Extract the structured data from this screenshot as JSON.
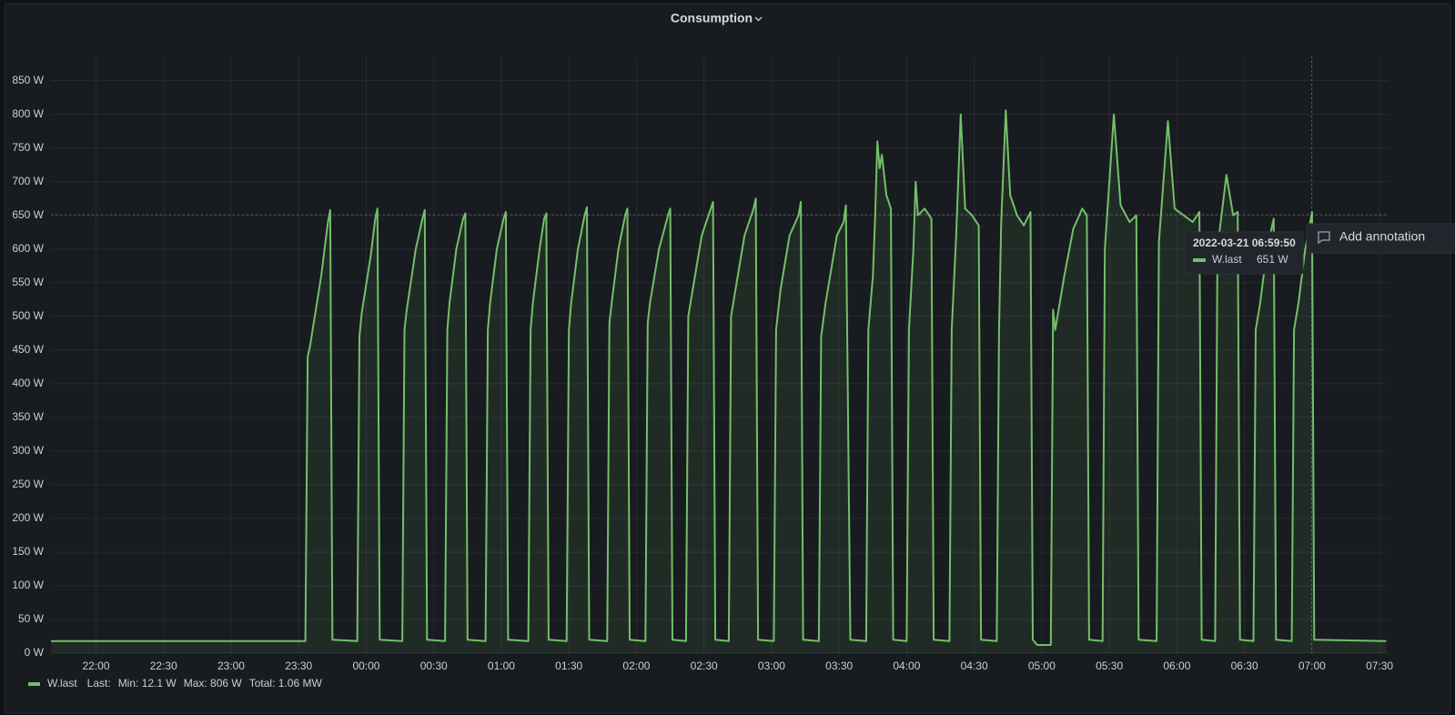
{
  "chart_data": {
    "type": "line",
    "title": "Consumption",
    "xlim": [
      "21:40",
      "07:34"
    ],
    "xticks": [
      "22:00",
      "22:30",
      "23:00",
      "23:30",
      "00:00",
      "00:30",
      "01:00",
      "01:30",
      "02:00",
      "02:30",
      "03:00",
      "03:30",
      "04:00",
      "04:30",
      "05:00",
      "05:30",
      "06:00",
      "06:30",
      "07:00",
      "07:30"
    ],
    "ylim": [
      0,
      886
    ],
    "yticks": [
      {
        "value": 0,
        "label": "0 W"
      },
      {
        "value": 50,
        "label": "50 W"
      },
      {
        "value": 100,
        "label": "100 W"
      },
      {
        "value": 150,
        "label": "150 W"
      },
      {
        "value": 200,
        "label": "200 W"
      },
      {
        "value": 250,
        "label": "250 W"
      },
      {
        "value": 300,
        "label": "300 W"
      },
      {
        "value": 350,
        "label": "350 W"
      },
      {
        "value": 400,
        "label": "400 W"
      },
      {
        "value": 450,
        "label": "450 W"
      },
      {
        "value": 500,
        "label": "500 W"
      },
      {
        "value": 550,
        "label": "550 W"
      },
      {
        "value": 600,
        "label": "600 W"
      },
      {
        "value": 650,
        "label": "650 W"
      },
      {
        "value": 700,
        "label": "700 W"
      },
      {
        "value": 750,
        "label": "750 W"
      },
      {
        "value": 800,
        "label": "800 W"
      },
      {
        "value": 850,
        "label": "850 W"
      }
    ],
    "grid": true,
    "x": [
      "21:40",
      "23:33",
      "23:34",
      "23:35",
      "23:40",
      "23:43",
      "23:44",
      "23:45",
      "23:56",
      "23:57",
      "23:58",
      "00:02",
      "00:04",
      "00:05",
      "00:06",
      "00:16",
      "00:17",
      "00:18",
      "00:22",
      "00:25",
      "00:26",
      "00:27",
      "00:35",
      "00:36",
      "00:37",
      "00:40",
      "00:43",
      "00:44",
      "00:45",
      "00:53",
      "00:54",
      "00:55",
      "00:58",
      "01:01",
      "01:02",
      "01:03",
      "01:12",
      "01:13",
      "01:14",
      "01:17",
      "01:19",
      "01:20",
      "01:21",
      "01:29",
      "01:30",
      "01:31",
      "01:34",
      "01:37",
      "01:38",
      "01:39",
      "01:47",
      "01:48",
      "01:49",
      "01:52",
      "01:55",
      "01:56",
      "01:57",
      "02:04",
      "02:05",
      "02:06",
      "02:10",
      "02:14",
      "02:15",
      "02:16",
      "02:22",
      "02:23",
      "02:25",
      "02:29",
      "02:33",
      "02:34",
      "02:35",
      "02:41",
      "02:42",
      "02:44",
      "02:48",
      "02:52",
      "02:53",
      "02:54",
      "03:01",
      "03:02",
      "03:04",
      "03:08",
      "03:12",
      "03:13",
      "03:14",
      "03:21",
      "03:22",
      "03:24",
      "03:29",
      "03:32",
      "03:33",
      "03:35",
      "03:42",
      "03:43",
      "03:45",
      "03:46",
      "03:47",
      "03:48",
      "03:49",
      "03:51",
      "03:53",
      "03:54",
      "04:00",
      "04:01",
      "04:03",
      "04:04",
      "04:05",
      "04:08",
      "04:11",
      "04:12",
      "04:19",
      "04:20",
      "04:22",
      "04:24",
      "04:26",
      "04:29",
      "04:32",
      "04:33",
      "04:40",
      "04:41",
      "04:42",
      "04:44",
      "04:46",
      "04:49",
      "04:52",
      "04:55",
      "04:56",
      "04:58",
      "05:04",
      "05:05",
      "05:06",
      "05:10",
      "05:14",
      "05:18",
      "05:20",
      "05:21",
      "05:27",
      "05:28",
      "05:32",
      "05:35",
      "05:39",
      "05:42",
      "05:43",
      "05:51",
      "05:52",
      "05:56",
      "05:59",
      "06:07",
      "06:10",
      "06:11",
      "06:17",
      "06:18",
      "06:22",
      "06:25",
      "06:27",
      "06:28",
      "06:34",
      "06:35",
      "06:37",
      "06:40",
      "06:43",
      "06:44",
      "06:51",
      "06:52",
      "06:54",
      "06:57",
      "07:00",
      "07:01",
      "07:33"
    ],
    "series": [
      {
        "name": "W.last",
        "color": "#73bf69",
        "values": [
          18,
          18,
          440,
          455,
          560,
          640,
          658,
          20,
          18,
          470,
          505,
          590,
          645,
          660,
          20,
          18,
          480,
          510,
          600,
          645,
          658,
          20,
          18,
          480,
          520,
          600,
          645,
          653,
          20,
          18,
          480,
          520,
          600,
          645,
          655,
          20,
          18,
          480,
          520,
          600,
          645,
          653,
          20,
          18,
          480,
          520,
          600,
          650,
          662,
          20,
          18,
          490,
          520,
          600,
          650,
          660,
          20,
          18,
          490,
          520,
          600,
          650,
          660,
          20,
          18,
          500,
          540,
          620,
          660,
          670,
          20,
          18,
          500,
          540,
          620,
          660,
          675,
          20,
          18,
          480,
          540,
          620,
          650,
          670,
          20,
          18,
          470,
          520,
          620,
          640,
          665,
          20,
          18,
          480,
          560,
          650,
          760,
          720,
          740,
          680,
          660,
          20,
          18,
          480,
          600,
          700,
          650,
          660,
          645,
          20,
          18,
          480,
          620,
          800,
          660,
          650,
          635,
          20,
          18,
          480,
          640,
          806,
          680,
          650,
          635,
          655,
          20,
          12.1,
          12.1,
          510,
          480,
          560,
          630,
          660,
          650,
          20,
          18,
          600,
          800,
          665,
          640,
          650,
          20,
          18,
          610,
          790,
          660,
          640,
          655,
          20,
          18,
          600,
          710,
          650,
          655,
          20,
          18,
          480,
          520,
          600,
          645,
          20,
          18,
          480,
          520,
          600,
          655,
          20,
          18
        ]
      }
    ],
    "legend": {
      "last": "Last:",
      "min": "Min: 12.1 W",
      "max": "Max: 806 W",
      "total": "Total: 1.06 MW"
    },
    "tooltip": {
      "time": "2022-03-21 06:59:50",
      "series": "W.last",
      "value": 651,
      "value_label": "651 W"
    },
    "annotation_button": "Add annotation"
  }
}
